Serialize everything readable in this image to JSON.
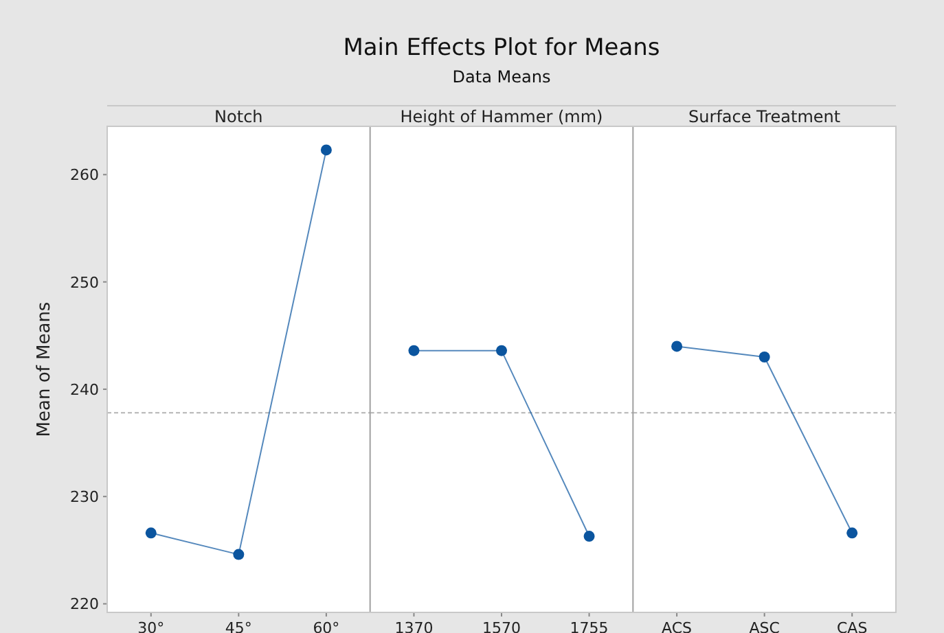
{
  "chart_data": [
    {
      "type": "line",
      "xlabel": "Notch",
      "ylabel": "Mean of Means",
      "categories": [
        "30°",
        "45°",
        "60°"
      ],
      "series": [
        {
          "color": "#0b559f",
          "values": [
            226.6,
            224.6,
            262.3
          ]
        }
      ],
      "ylim": [
        219.2,
        264.5
      ],
      "yticks": [
        220,
        230,
        240,
        250,
        260
      ],
      "ref_lines": [
        {
          "axis": "y",
          "value": 237.8,
          "line_style": "dashed",
          "color": "#b4b4b4"
        }
      ],
      "marker": "circle"
    },
    {
      "type": "line",
      "title": "Main Effects Plot for Means",
      "subtitle": "Data Means",
      "xlabel": "Height of Hammer (mm)",
      "categories": [
        "1370",
        "1570",
        "1755"
      ],
      "series": [
        {
          "color": "#0b559f",
          "values": [
            243.6,
            243.6,
            226.3
          ]
        }
      ],
      "ylim": [
        219.2,
        264.5
      ],
      "tick_labels": "x",
      "ref_lines": [
        {
          "axis": "y",
          "value": 237.8,
          "line_style": "dashed",
          "color": "#b4b4b4"
        }
      ],
      "marker": "circle"
    },
    {
      "type": "line",
      "xlabel": "Surface Treatment",
      "categories": [
        "ACS",
        "ASC",
        "CAS"
      ],
      "series": [
        {
          "color": "#0b559f",
          "values": [
            244.0,
            243.0,
            226.6
          ]
        }
      ],
      "ylim": [
        219.2,
        264.5
      ],
      "tick_labels": "x",
      "ref_lines": [
        {
          "axis": "y",
          "value": 237.8,
          "line_style": "dashed",
          "color": "#b4b4b4"
        }
      ],
      "marker": "circle"
    }
  ]
}
